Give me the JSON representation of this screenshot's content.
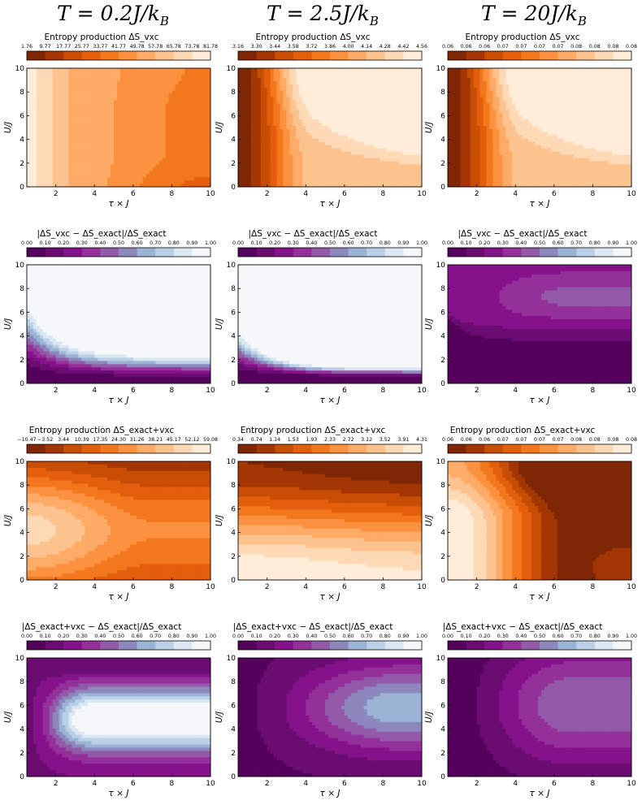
{
  "column_titles": [
    "T = 0.2J/k",
    "T = 2.5J/k",
    "T = 20J/k"
  ],
  "column_title_subscript": "B",
  "colors": {
    "oranges": [
      "#7f2704",
      "#a33603",
      "#c84d05",
      "#e35f0c",
      "#f3771d",
      "#fc9240",
      "#fdab67",
      "#fdc38f",
      "#fed9b5",
      "#ffedd9"
    ],
    "purples": [
      "#54005d",
      "#6a0c72",
      "#85128a",
      "#94309a",
      "#925aa8",
      "#8c88bd",
      "#9bb3d4",
      "#bbd0e6",
      "#dbe7f2",
      "#f5f8fb"
    ]
  },
  "chart_data": [
    {
      "type": "heatmap",
      "row": 0,
      "col": 0,
      "title": "Entropy production ΔS_vxc",
      "xlabel": "τ × J",
      "ylabel": "U/J",
      "xlim": [
        0.5,
        10
      ],
      "ylim": [
        0,
        10
      ],
      "colormap": "oranges",
      "colorbar_ticks": [
        "1.76",
        "9.77",
        "17.77",
        "25.77",
        "33.77",
        "41.77",
        "49.78",
        "57.78",
        "65.78",
        "73.78",
        "81.78"
      ],
      "field": "A"
    },
    {
      "type": "heatmap",
      "row": 0,
      "col": 1,
      "title": "Entropy production ΔS_vxc",
      "xlabel": "τ × J",
      "ylabel": "U/J",
      "xlim": [
        0.5,
        10
      ],
      "ylim": [
        0,
        10
      ],
      "colormap": "oranges",
      "colorbar_ticks": [
        "3.16",
        "3.30",
        "3.44",
        "3.58",
        "3.72",
        "3.86",
        "4.00",
        "4.14",
        "4.28",
        "4.42",
        "4.56"
      ],
      "field": "B"
    },
    {
      "type": "heatmap",
      "row": 0,
      "col": 2,
      "title": "Entropy production ΔS_vxc",
      "xlabel": "τ × J",
      "ylabel": "U/J",
      "xlim": [
        0.5,
        10
      ],
      "ylim": [
        0,
        10
      ],
      "colormap": "oranges",
      "colorbar_ticks": [
        "0.06",
        "0.06",
        "0.06",
        "0.07",
        "0.07",
        "0.07",
        "0.07",
        "0.08",
        "0.08",
        "0.08",
        "0.08"
      ],
      "field": "B"
    },
    {
      "type": "heatmap",
      "row": 1,
      "col": 0,
      "title": "|ΔS_vxc − ΔS_exact|/ΔS_exact",
      "xlabel": "τ × J",
      "ylabel": "U/J",
      "xlim": [
        0.5,
        10
      ],
      "ylim": [
        0,
        10
      ],
      "colormap": "purples",
      "colorbar_ticks": [
        "0.00",
        "0.10",
        "0.20",
        "0.30",
        "0.40",
        "0.50",
        "0.60",
        "0.70",
        "0.80",
        "0.90",
        "1.00"
      ],
      "field": "C"
    },
    {
      "type": "heatmap",
      "row": 1,
      "col": 1,
      "title": "|ΔS_vxc − ΔS_exact|/ΔS_exact",
      "xlabel": "τ × J",
      "ylabel": "U/J",
      "xlim": [
        0.5,
        10
      ],
      "ylim": [
        0,
        10
      ],
      "colormap": "purples",
      "colorbar_ticks": [
        "0.00",
        "0.10",
        "0.20",
        "0.30",
        "0.40",
        "0.50",
        "0.60",
        "0.70",
        "0.80",
        "0.90",
        "1.00"
      ],
      "field": "D"
    },
    {
      "type": "heatmap",
      "row": 1,
      "col": 2,
      "title": "|ΔS_vxc − ΔS_exact|/ΔS_exact",
      "xlabel": "τ × J",
      "ylabel": "U/J",
      "xlim": [
        0.5,
        10
      ],
      "ylim": [
        0,
        10
      ],
      "colormap": "purples",
      "colorbar_ticks": [
        "0.00",
        "0.10",
        "0.20",
        "0.30",
        "0.40",
        "0.50",
        "0.60",
        "0.70",
        "0.80",
        "0.90",
        "1.00"
      ],
      "field": "E"
    },
    {
      "type": "heatmap",
      "row": 2,
      "col": 0,
      "title": "Entropy production ΔS_exact+vxc",
      "xlabel": "τ × J",
      "ylabel": "U/J",
      "xlim": [
        0.5,
        10
      ],
      "ylim": [
        0,
        10
      ],
      "colormap": "oranges",
      "colorbar_ticks": [
        "−10.47",
        "−3.52",
        "3.44",
        "10.39",
        "17.35",
        "24.30",
        "31.26",
        "38.21",
        "45.17",
        "52.12",
        "59.08"
      ],
      "field": "F"
    },
    {
      "type": "heatmap",
      "row": 2,
      "col": 1,
      "title": "Entropy production ΔS_exact+vxc",
      "xlabel": "τ × J",
      "ylabel": "U/J",
      "xlim": [
        0.5,
        10
      ],
      "ylim": [
        0,
        10
      ],
      "colormap": "oranges",
      "colorbar_ticks": [
        "0.34",
        "0.74",
        "1.14",
        "1.53",
        "1.93",
        "2.33",
        "2.72",
        "3.12",
        "3.52",
        "3.91",
        "4.31"
      ],
      "field": "G"
    },
    {
      "type": "heatmap",
      "row": 2,
      "col": 2,
      "title": "Entropy production ΔS_exact+vxc",
      "xlabel": "τ × J",
      "ylabel": "U/J",
      "xlim": [
        0.5,
        10
      ],
      "ylim": [
        0,
        10
      ],
      "colormap": "oranges",
      "colorbar_ticks": [
        "0.06",
        "0.06",
        "0.06",
        "0.07",
        "0.07",
        "0.07",
        "0.07",
        "0.08",
        "0.08",
        "0.08",
        "0.08"
      ],
      "field": "H"
    },
    {
      "type": "heatmap",
      "row": 3,
      "col": 0,
      "title": "|ΔS_exact+vxc − ΔS_exact|/ΔS_exact",
      "xlabel": "τ × J",
      "ylabel": "U/J",
      "xlim": [
        0.5,
        10
      ],
      "ylim": [
        0,
        10
      ],
      "colormap": "purples",
      "colorbar_ticks": [
        "0.00",
        "0.10",
        "0.20",
        "0.30",
        "0.40",
        "0.50",
        "0.60",
        "0.70",
        "0.80",
        "0.90",
        "1.00"
      ],
      "field": "I"
    },
    {
      "type": "heatmap",
      "row": 3,
      "col": 1,
      "title": "|ΔS_exact+vxc − ΔS_exact|/ΔS_exact",
      "xlabel": "τ × J",
      "ylabel": "U/J",
      "xlim": [
        0.5,
        10
      ],
      "ylim": [
        0,
        10
      ],
      "colormap": "purples",
      "colorbar_ticks": [
        "0.00",
        "0.10",
        "0.20",
        "0.30",
        "0.40",
        "0.50",
        "0.60",
        "0.70",
        "0.80",
        "0.90",
        "1.00"
      ],
      "field": "J"
    },
    {
      "type": "heatmap",
      "row": 3,
      "col": 2,
      "title": "|ΔS_exact+vxc − ΔS_exact|/ΔS_exact",
      "xlabel": "τ × J",
      "ylabel": "U/J",
      "xlim": [
        0.5,
        10
      ],
      "ylim": [
        0,
        10
      ],
      "colormap": "purples",
      "colorbar_ticks": [
        "0.00",
        "0.10",
        "0.20",
        "0.30",
        "0.40",
        "0.50",
        "0.60",
        "0.70",
        "0.80",
        "0.90",
        "1.00"
      ],
      "field": "K"
    }
  ]
}
